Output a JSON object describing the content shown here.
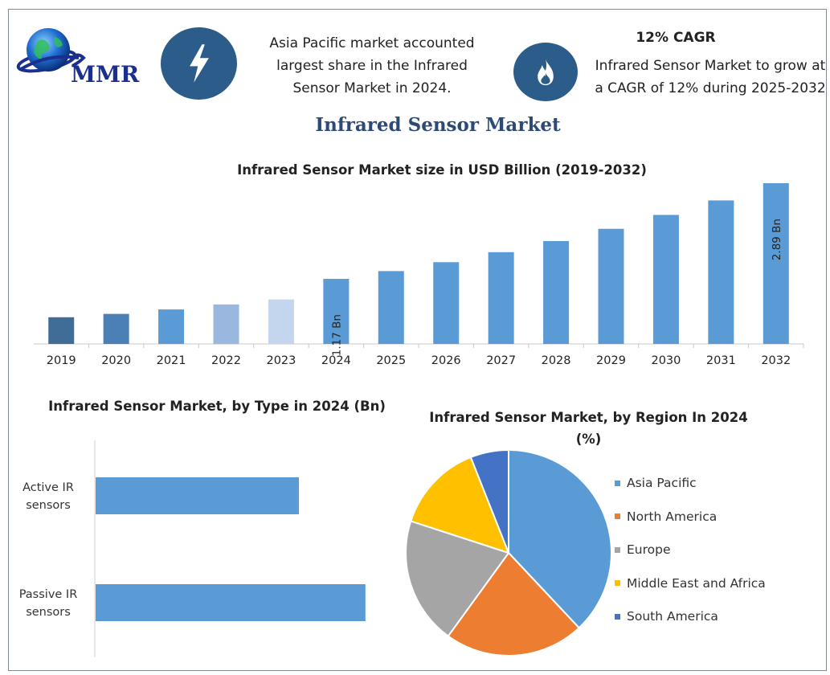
{
  "header": {
    "logo_text": "MMR",
    "info_left": "Asia Pacific market accounted largest share in the Infrared Sensor Market in 2024.",
    "cagr_title": "12% CAGR",
    "info_right": "Infrared Sensor Market to grow at a CAGR of 12% during 2025-2032",
    "icons": [
      "lightning-bolt-icon",
      "flame-icon"
    ]
  },
  "main_title": "Infrared Sensor Market",
  "colors": {
    "accent_dark": "#2c5d8a",
    "title_blue": "#2c4a75",
    "bar_blue": "#5b9bd5"
  },
  "chart_data": [
    {
      "type": "bar",
      "title": "Infrared Sensor Market size in USD Billion (2019-2032)",
      "categories": [
        "2019",
        "2020",
        "2021",
        "2022",
        "2023",
        "2024",
        "2025",
        "2026",
        "2027",
        "2028",
        "2029",
        "2030",
        "2031",
        "2032"
      ],
      "values": [
        0.48,
        0.54,
        0.62,
        0.71,
        0.8,
        1.17,
        1.31,
        1.47,
        1.65,
        1.85,
        2.07,
        2.32,
        2.58,
        2.89
      ],
      "colors": [
        "#3f6d98",
        "#4a80b6",
        "#5b9bd5",
        "#9ab8df",
        "#c3d6ee",
        "#5b9bd5",
        "#5b9bd5",
        "#5b9bd5",
        "#5b9bd5",
        "#5b9bd5",
        "#5b9bd5",
        "#5b9bd5",
        "#5b9bd5",
        "#5b9bd5"
      ],
      "data_labels": [
        {
          "category": "2024",
          "text": "1.17 Bn"
        },
        {
          "category": "2032",
          "text": "2.89 Bn"
        }
      ],
      "ylim": [
        0,
        2.89
      ]
    },
    {
      "type": "bar",
      "orientation": "horizontal",
      "title": "Infrared Sensor Market, by Type in 2024 (Bn)",
      "categories": [
        "Active IR sensors",
        "Passive IR sensors"
      ],
      "values": [
        0.55,
        0.73
      ],
      "xlim": [
        0,
        0.8
      ]
    },
    {
      "type": "pie",
      "title": "Infrared Sensor Market, by Region In 2024 (%)",
      "labels": [
        "Asia Pacific",
        "North America",
        "Europe",
        "Middle East and Africa",
        "South America"
      ],
      "values": [
        38,
        22,
        20,
        14,
        6
      ],
      "colors": [
        "#5b9bd5",
        "#ed7d31",
        "#a5a5a5",
        "#ffc000",
        "#4472c4"
      ],
      "legend_position": "right"
    }
  ]
}
